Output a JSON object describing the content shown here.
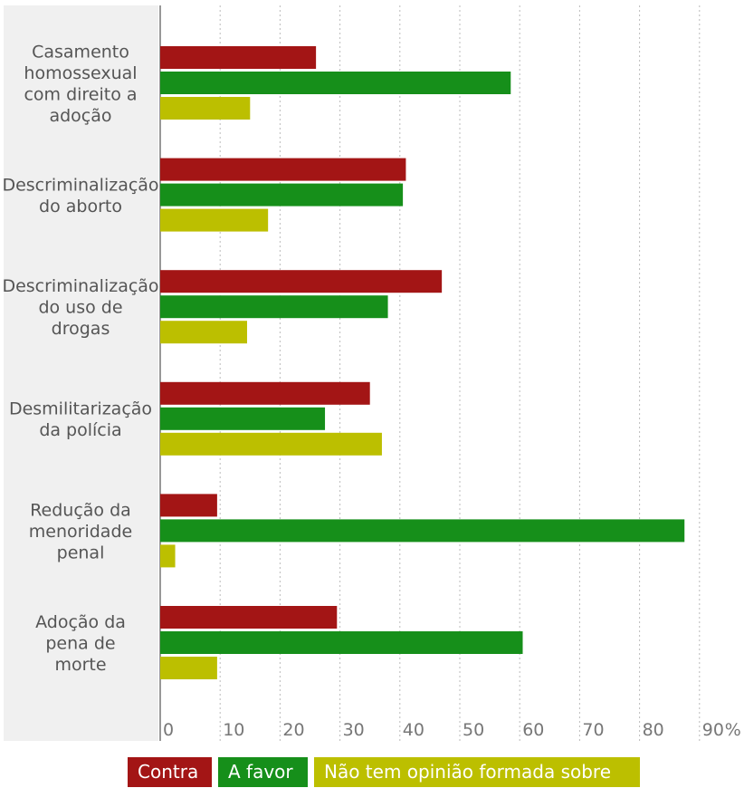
{
  "chart_data": {
    "type": "bar",
    "orientation": "horizontal",
    "categories": [
      [
        "Casamento",
        "homossexual",
        "com direito a",
        "adoção"
      ],
      [
        "Descriminalização",
        "do aborto"
      ],
      [
        "Descriminalização",
        "do uso de",
        "drogas"
      ],
      [
        "Desmilitarização",
        "da polícia"
      ],
      [
        "Redução da",
        "menoridade",
        "penal"
      ],
      [
        "Adoção da",
        "pena de",
        "morte"
      ]
    ],
    "series": [
      {
        "name": "Contra",
        "color": "#a31515",
        "values": [
          26,
          41,
          47,
          35,
          9.5,
          29.5
        ]
      },
      {
        "name": "A favor",
        "color": "#168f1a",
        "values": [
          58.5,
          40.5,
          38,
          27.5,
          87.5,
          60.5
        ]
      },
      {
        "name": "Não tem opinião formada sobre",
        "color": "#bcbf00",
        "values": [
          15,
          18,
          14.5,
          37,
          2.5,
          9.5
        ]
      }
    ],
    "xticks": [
      "0",
      "10",
      "20",
      "30",
      "40",
      "50",
      "60",
      "70",
      "80",
      "90"
    ],
    "xunit": "%",
    "xlim": [
      0,
      90
    ],
    "grid": true,
    "legend_position": "bottom"
  }
}
